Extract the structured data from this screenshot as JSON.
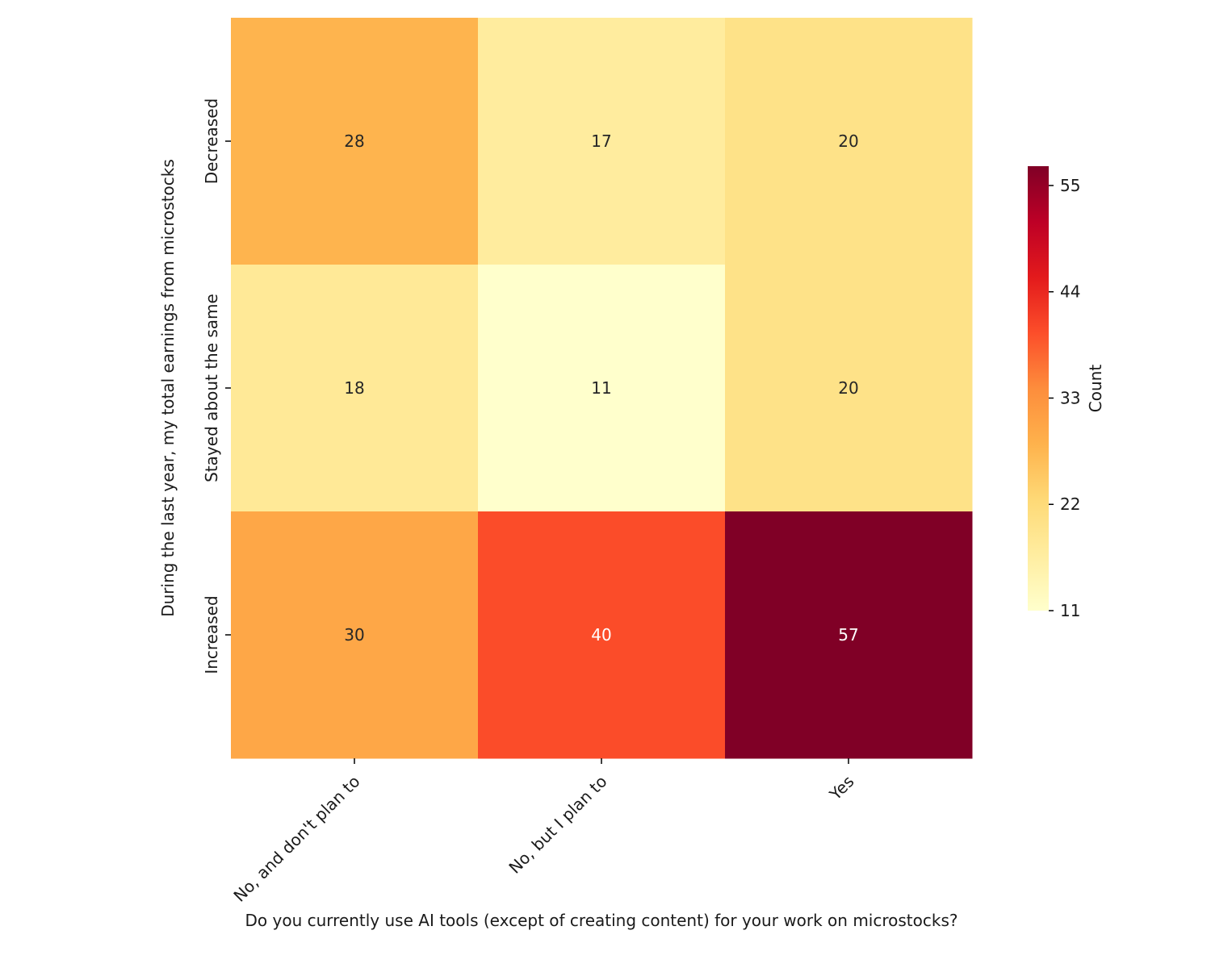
{
  "chart_data": {
    "type": "heatmap",
    "x_categories": [
      "No, and don't plan to",
      "No, but I plan to",
      "Yes"
    ],
    "y_categories": [
      "Decreased",
      "Stayed about the same",
      "Increased"
    ],
    "values": [
      [
        28,
        17,
        20
      ],
      [
        18,
        11,
        20
      ],
      [
        30,
        40,
        57
      ]
    ],
    "xlabel": "Do you currently use AI tools (except of creating content) for your work on microstocks?",
    "ylabel": "During the last year, my total earnings from microstocks",
    "colorbar": {
      "label": "Count",
      "colormap": "YlOrRd",
      "range": [
        11,
        57
      ],
      "ticks": [
        11,
        22,
        33,
        44,
        55
      ]
    },
    "annotations": true,
    "grid": false
  }
}
